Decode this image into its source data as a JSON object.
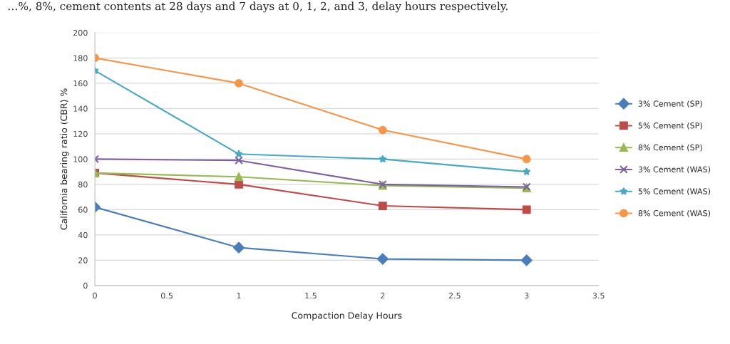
{
  "chart_data": {
    "type": "line",
    "xlabel": "Compaction Delay Hours",
    "ylabel": "California bearing ratio (CBR) %",
    "annotations": [
      "…%, 8%, cement contents at 28 days and 7 days at 0, 1, 2, and 3, delay hours respectively."
    ],
    "x": [
      0,
      1,
      2,
      3
    ],
    "series": [
      {
        "name": "3% Cement (SP)",
        "color": "#4a7ebb",
        "marker": "diamond",
        "values": [
          62,
          30,
          21,
          20
        ]
      },
      {
        "name": "5% Cement (SP)",
        "color": "#be4b48",
        "marker": "square",
        "values": [
          89,
          80,
          63,
          60
        ]
      },
      {
        "name": "8% Cement (SP)",
        "color": "#98b954",
        "marker": "triangle",
        "values": [
          89,
          86,
          79,
          77
        ]
      },
      {
        "name": "3% Cement (WAS)",
        "color": "#7d60a0",
        "marker": "cross",
        "values": [
          100,
          99,
          80,
          78
        ]
      },
      {
        "name": "5% Cement (WAS)",
        "color": "#46aac5",
        "marker": "star",
        "values": [
          170,
          104,
          100,
          90
        ]
      },
      {
        "name": "8% Cement (WAS)",
        "color": "#f79646",
        "marker": "circle",
        "values": [
          180,
          160,
          123,
          100
        ]
      }
    ],
    "xlim": [
      0,
      3.5
    ],
    "xticks": [
      0,
      0.5,
      1,
      1.5,
      2,
      2.5,
      3,
      3.5
    ],
    "ylim": [
      0,
      200
    ],
    "yticks": [
      0,
      20,
      40,
      60,
      80,
      100,
      120,
      140,
      160,
      180,
      200
    ],
    "grid": "y",
    "legend": "right",
    "line_style": "solid"
  }
}
